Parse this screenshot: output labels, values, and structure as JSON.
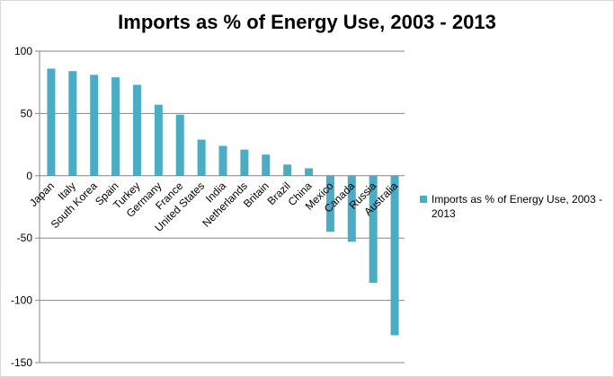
{
  "chart_data": {
    "type": "bar",
    "title": "Imports as % of Energy Use, 2003 - 2013",
    "xlabel": "",
    "ylabel": "",
    "ylim": [
      -150,
      100
    ],
    "yticks": [
      100,
      50,
      0,
      -50,
      -100,
      -150
    ],
    "grid": true,
    "legend_position": "right",
    "categories": [
      "Japan",
      "Italy",
      "South Korea",
      "Spain",
      "Turkey",
      "Germany",
      "France",
      "United States",
      "India",
      "Netherlands",
      "Britain",
      "Brazil",
      "China",
      "Mexico",
      "Canada",
      "Russia",
      "Australia"
    ],
    "series": [
      {
        "name": "Imports as % of Energy Use, 2003 - 2013",
        "color": "#4bacc6",
        "values": [
          86,
          84,
          81,
          79,
          73,
          57,
          49,
          29,
          24,
          21,
          17,
          9,
          6,
          -45,
          -53,
          -86,
          -128
        ]
      }
    ]
  }
}
